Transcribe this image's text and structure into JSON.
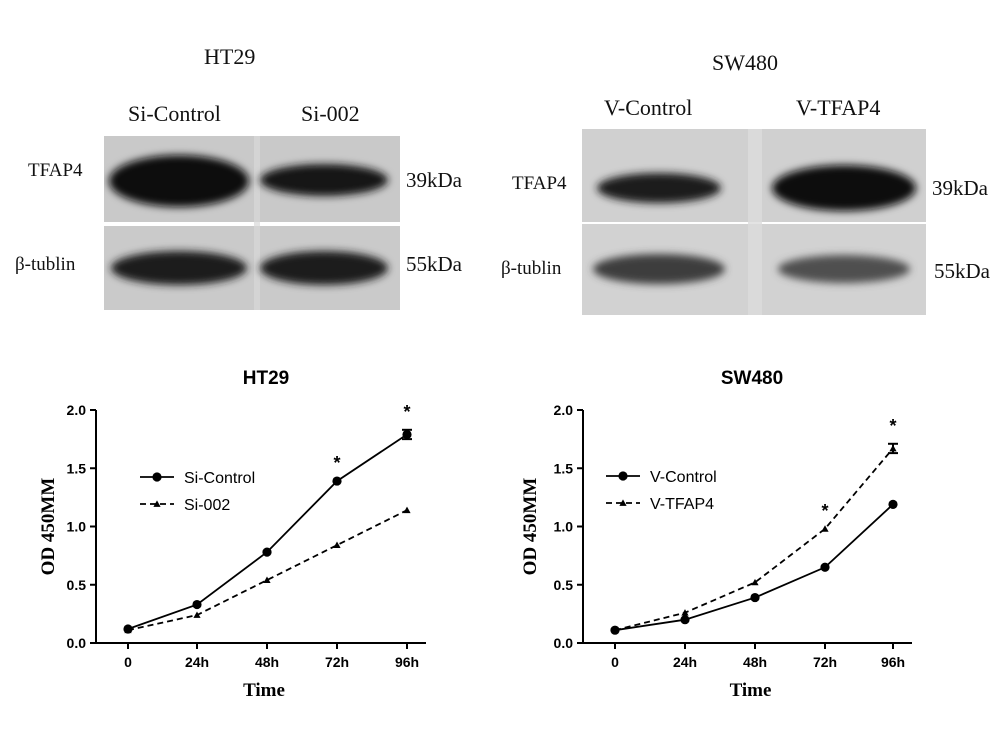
{
  "blots": [
    {
      "title": "HT29",
      "lanes": [
        "Si-Control",
        "Si-002"
      ],
      "rows": [
        {
          "label": "TFAP4",
          "size": "39kDa",
          "intensity": [
            1.0,
            0.75
          ]
        },
        {
          "label": "β-tublin",
          "size": "55kDa",
          "intensity": [
            0.85,
            0.85
          ]
        }
      ]
    },
    {
      "title": "SW480",
      "lanes": [
        "V-Control",
        "V-TFAP4"
      ],
      "rows": [
        {
          "label": "TFAP4",
          "size": "39kDa",
          "intensity": [
            0.75,
            1.0
          ]
        },
        {
          "label": "β-tublin",
          "size": "55kDa",
          "intensity": [
            0.6,
            0.5
          ]
        }
      ]
    }
  ],
  "chart_data": [
    {
      "type": "line",
      "title": "HT29",
      "xlabel": "Time",
      "ylabel": "OD 450MM",
      "categories": [
        "0",
        "24h",
        "48h",
        "72h",
        "96h"
      ],
      "ylim": [
        0,
        2.0
      ],
      "yticks": [
        "0.0",
        "0.5",
        "1.0",
        "1.5",
        "2.0"
      ],
      "grid": false,
      "legend_position": "center-left",
      "series": [
        {
          "name": "Si-Control",
          "values": [
            0.12,
            0.33,
            0.78,
            1.39,
            1.79
          ],
          "errors": [
            0,
            0,
            0,
            0,
            0.04
          ],
          "style": "solid",
          "marker": "circle"
        },
        {
          "name": "Si-002",
          "values": [
            0.11,
            0.24,
            0.54,
            0.84,
            1.14
          ],
          "errors": [
            0,
            0,
            0,
            0,
            0
          ],
          "style": "dashed",
          "marker": "triangle"
        }
      ],
      "annotations": [
        {
          "x": "72h",
          "y": 1.39,
          "text": "*"
        },
        {
          "x": "96h",
          "y": 1.83,
          "text": "*"
        }
      ]
    },
    {
      "type": "line",
      "title": "SW480",
      "xlabel": "Time",
      "ylabel": "OD 450MM",
      "categories": [
        "0",
        "24h",
        "48h",
        "72h",
        "96h"
      ],
      "ylim": [
        0,
        2.0
      ],
      "yticks": [
        "0.0",
        "0.5",
        "1.0",
        "1.5",
        "2.0"
      ],
      "grid": false,
      "legend_position": "center-left",
      "series": [
        {
          "name": "V-Control",
          "values": [
            0.11,
            0.2,
            0.39,
            0.65,
            1.19
          ],
          "errors": [
            0,
            0,
            0,
            0,
            0
          ],
          "style": "solid",
          "marker": "circle"
        },
        {
          "name": "V-TFAP4",
          "values": [
            0.11,
            0.26,
            0.52,
            0.98,
            1.67
          ],
          "errors": [
            0,
            0,
            0,
            0,
            0.04
          ],
          "style": "dashed",
          "marker": "triangle"
        }
      ],
      "annotations": [
        {
          "x": "72h",
          "y": 0.98,
          "text": "*"
        },
        {
          "x": "96h",
          "y": 1.71,
          "text": "*"
        }
      ]
    }
  ]
}
